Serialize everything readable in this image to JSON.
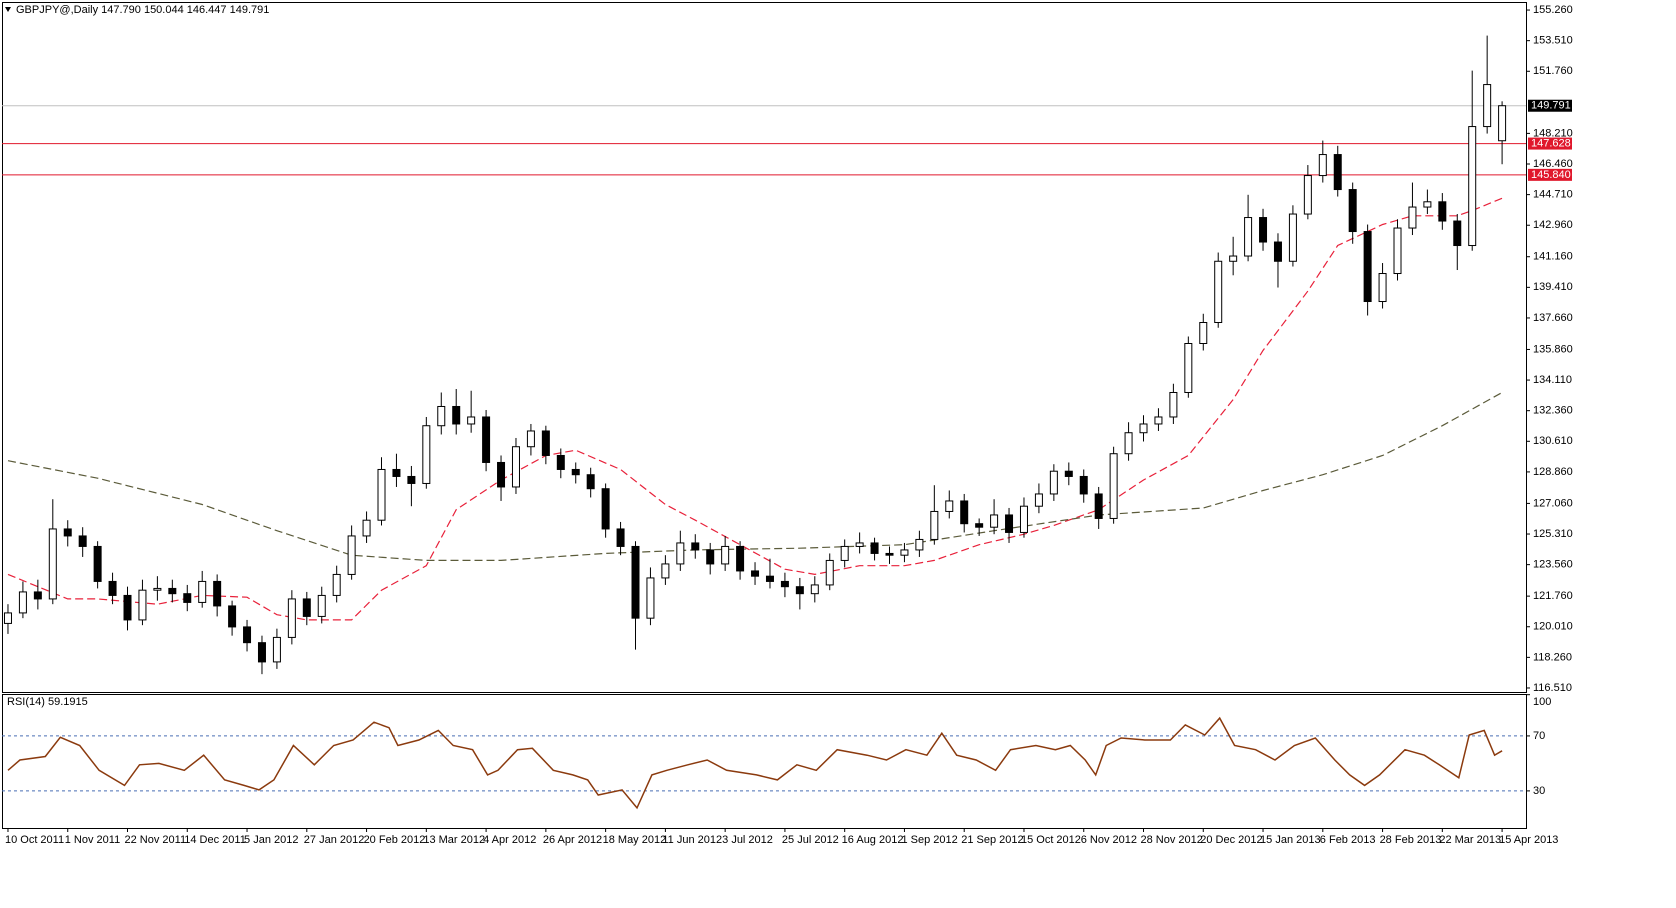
{
  "chart_data": {
    "type": "candlestick",
    "title": "GBPJPY@,Daily  147.790 150.044 146.447 149.791",
    "up_color": "#ffffff",
    "down_color": "#000000",
    "open": [
      120.2,
      120.8,
      122.0,
      121.6,
      125.6,
      125.2,
      124.6,
      122.6,
      121.8,
      120.4,
      122.1,
      122.2,
      121.9,
      121.4,
      122.6,
      121.2,
      120.0,
      119.1,
      118.0,
      119.4,
      121.6,
      120.6,
      121.8,
      123.0,
      125.2,
      126.1,
      129.0,
      128.6,
      128.2,
      131.5,
      132.6,
      131.6,
      132.0,
      129.4,
      128.0,
      130.3,
      131.2,
      129.8,
      129.0,
      128.7,
      127.9,
      125.6,
      124.6,
      120.5,
      122.8,
      123.6,
      124.8,
      124.4,
      123.6,
      124.6,
      123.2,
      122.9,
      122.6,
      122.3,
      121.9,
      122.4,
      123.8,
      124.6,
      124.8,
      124.2,
      124.1,
      124.4,
      125.0,
      126.6,
      127.2,
      125.9,
      125.7,
      126.4,
      125.4,
      126.9,
      127.6,
      128.9,
      128.6,
      127.6,
      126.2,
      129.9,
      131.1,
      131.6,
      132.0,
      133.4,
      136.2,
      137.4,
      140.9,
      141.2,
      143.4,
      142.0,
      140.9,
      143.6,
      145.8,
      147.0,
      145.0,
      142.6,
      138.6,
      140.2,
      142.8,
      144.0,
      144.3,
      143.2,
      141.8,
      148.6,
      147.79
    ],
    "high": [
      121.3,
      122.6,
      122.7,
      127.3,
      126.1,
      125.7,
      124.9,
      123.1,
      122.3,
      122.7,
      122.9,
      122.7,
      122.4,
      123.2,
      123.0,
      121.5,
      120.4,
      119.5,
      119.9,
      122.1,
      122.0,
      122.3,
      123.5,
      125.8,
      126.6,
      129.7,
      129.9,
      129.2,
      132.0,
      133.4,
      133.6,
      133.5,
      132.4,
      129.8,
      130.8,
      131.6,
      131.5,
      130.2,
      129.4,
      129.1,
      128.2,
      126.0,
      124.9,
      123.4,
      124.1,
      125.5,
      125.3,
      124.8,
      125.2,
      124.9,
      123.7,
      123.9,
      123.1,
      122.8,
      122.9,
      124.2,
      125.0,
      125.4,
      125.1,
      124.6,
      124.8,
      125.5,
      128.1,
      127.8,
      127.6,
      126.2,
      127.3,
      126.8,
      127.4,
      128.2,
      129.3,
      129.4,
      129.0,
      128.0,
      130.3,
      131.7,
      132.1,
      132.5,
      133.9,
      136.6,
      137.9,
      141.4,
      142.3,
      144.7,
      143.9,
      142.5,
      144.1,
      146.4,
      147.8,
      147.5,
      145.4,
      143.0,
      140.8,
      143.3,
      145.4,
      145.0,
      144.8,
      143.6,
      151.8,
      153.8,
      150.044
    ],
    "low": [
      119.6,
      120.5,
      121.0,
      121.3,
      124.6,
      124.0,
      122.2,
      121.3,
      119.8,
      120.1,
      121.5,
      121.4,
      120.9,
      121.1,
      120.6,
      119.5,
      118.6,
      117.3,
      117.6,
      119.0,
      120.1,
      120.2,
      121.4,
      122.7,
      124.8,
      125.8,
      128.0,
      126.9,
      127.9,
      131.0,
      131.0,
      131.1,
      128.9,
      127.2,
      127.6,
      129.8,
      129.3,
      128.5,
      128.2,
      127.4,
      125.1,
      124.1,
      118.7,
      120.1,
      122.4,
      123.2,
      123.9,
      123.0,
      123.2,
      122.7,
      122.4,
      122.2,
      121.7,
      121.0,
      121.4,
      122.1,
      123.4,
      124.2,
      123.8,
      123.6,
      123.7,
      124.0,
      124.7,
      126.2,
      125.4,
      125.2,
      125.3,
      124.8,
      125.1,
      126.5,
      127.2,
      128.1,
      127.1,
      125.6,
      125.9,
      129.5,
      130.6,
      131.2,
      131.6,
      133.1,
      135.8,
      137.1,
      140.1,
      140.9,
      141.5,
      139.4,
      140.6,
      143.3,
      145.4,
      144.6,
      141.9,
      137.8,
      138.2,
      139.8,
      142.4,
      143.6,
      142.7,
      140.4,
      141.5,
      148.2,
      146.447
    ],
    "close": [
      120.8,
      122.0,
      121.6,
      125.6,
      125.2,
      124.6,
      122.6,
      121.8,
      120.4,
      122.1,
      122.2,
      121.9,
      121.4,
      122.6,
      121.2,
      120.0,
      119.1,
      118.0,
      119.4,
      121.6,
      120.6,
      121.8,
      123.0,
      125.2,
      126.1,
      129.0,
      128.6,
      128.2,
      131.5,
      132.6,
      131.6,
      132.0,
      129.4,
      128.0,
      130.3,
      131.2,
      129.8,
      129.0,
      128.7,
      127.9,
      125.6,
      124.6,
      120.5,
      122.8,
      123.6,
      124.8,
      124.4,
      123.6,
      124.6,
      123.2,
      122.9,
      122.6,
      122.3,
      121.9,
      122.4,
      123.8,
      124.6,
      124.8,
      124.2,
      124.1,
      124.4,
      125.0,
      126.6,
      127.2,
      125.9,
      125.7,
      126.4,
      125.4,
      126.9,
      127.6,
      128.9,
      128.6,
      127.6,
      126.2,
      129.9,
      131.1,
      131.6,
      132.0,
      133.4,
      136.2,
      137.4,
      140.9,
      141.2,
      143.4,
      142.0,
      140.9,
      143.6,
      145.8,
      147.0,
      145.0,
      142.6,
      138.6,
      140.2,
      142.8,
      144.0,
      144.3,
      143.2,
      141.8,
      148.6,
      151.0,
      149.791
    ],
    "xlim": [
      -0.4,
      101.6
    ],
    "ylim": [
      116.28,
      155.72
    ],
    "yticks": [
      {
        "value": 155.26,
        "label": "155.260"
      },
      {
        "value": 153.51,
        "label": "153.510"
      },
      {
        "value": 151.76,
        "label": "151.760"
      },
      {
        "value": 148.21,
        "label": "148.210"
      },
      {
        "value": 146.46,
        "label": "146.460"
      },
      {
        "value": 144.71,
        "label": "144.710"
      },
      {
        "value": 142.96,
        "label": "142.960"
      },
      {
        "value": 141.16,
        "label": "141.160"
      },
      {
        "value": 139.41,
        "label": "139.410"
      },
      {
        "value": 137.66,
        "label": "137.660"
      },
      {
        "value": 135.86,
        "label": "135.860"
      },
      {
        "value": 134.11,
        "label": "134.110"
      },
      {
        "value": 132.36,
        "label": "132.360"
      },
      {
        "value": 130.61,
        "label": "130.610"
      },
      {
        "value": 128.86,
        "label": "128.860"
      },
      {
        "value": 127.06,
        "label": "127.060"
      },
      {
        "value": 125.31,
        "label": "125.310"
      },
      {
        "value": 123.56,
        "label": "123.560"
      },
      {
        "value": 121.76,
        "label": "121.760"
      },
      {
        "value": 120.01,
        "label": "120.010"
      },
      {
        "value": 118.26,
        "label": "118.260"
      },
      {
        "value": 116.51,
        "label": "116.510"
      }
    ],
    "xticks": [
      {
        "value": 0,
        "label": "10 Oct 2011"
      },
      {
        "value": 4,
        "label": "1 Nov 2011"
      },
      {
        "value": 8,
        "label": "22 Nov 2011"
      },
      {
        "value": 12,
        "label": "14 Dec 2011"
      },
      {
        "value": 16,
        "label": "5 Jan 2012"
      },
      {
        "value": 20,
        "label": "27 Jan 2012"
      },
      {
        "value": 24,
        "label": "20 Feb 2012"
      },
      {
        "value": 28,
        "label": "13 Mar 2012"
      },
      {
        "value": 32,
        "label": "4 Apr 2012"
      },
      {
        "value": 36,
        "label": "26 Apr 2012"
      },
      {
        "value": 40,
        "label": "18 May 2012"
      },
      {
        "value": 44,
        "label": "11 Jun 2012"
      },
      {
        "value": 48,
        "label": "3 Jul 2012"
      },
      {
        "value": 52,
        "label": "25 Jul 2012"
      },
      {
        "value": 56,
        "label": "16 Aug 2012"
      },
      {
        "value": 60,
        "label": "1 Sep 2012"
      },
      {
        "value": 64,
        "label": "21 Sep 2012"
      },
      {
        "value": 68,
        "label": "15 Oct 2012"
      },
      {
        "value": 72,
        "label": "6 Nov 2012"
      },
      {
        "value": 76,
        "label": "28 Nov 2012"
      },
      {
        "value": 80,
        "label": "20 Dec 2012"
      },
      {
        "value": 84,
        "label": "15 Jan 2013"
      },
      {
        "value": 88,
        "label": "6 Feb 2013"
      },
      {
        "value": 92,
        "label": "28 Feb 2013"
      },
      {
        "value": 96,
        "label": "22 Mar 2013"
      },
      {
        "value": 100,
        "label": "15 Apr 2013"
      }
    ],
    "moving_averages": [
      {
        "color": "#e8213a",
        "x": [
          0,
          4,
          6,
          10,
          13,
          16,
          18,
          20,
          23,
          25,
          28,
          30,
          33,
          36,
          38,
          41,
          44,
          46,
          49,
          52,
          54,
          57,
          60,
          62,
          65,
          68,
          70,
          73,
          76,
          79,
          82,
          84,
          87,
          89,
          92,
          94,
          97,
          98,
          100
        ],
        "values": [
          123.0,
          121.6,
          121.6,
          121.3,
          121.8,
          121.7,
          120.7,
          120.4,
          120.4,
          122.1,
          123.5,
          126.7,
          128.4,
          129.8,
          130.1,
          129.0,
          127.0,
          126.1,
          124.7,
          123.3,
          123.0,
          123.5,
          123.5,
          123.8,
          124.7,
          125.3,
          125.8,
          126.7,
          128.4,
          129.8,
          133.0,
          135.8,
          139.2,
          141.8,
          143.0,
          143.5,
          143.5,
          143.8,
          144.5
        ]
      },
      {
        "color": "#5b5b3a",
        "x": [
          0,
          6,
          13,
          18,
          23,
          28,
          33,
          40,
          46,
          53,
          60,
          66,
          73,
          80,
          84,
          88,
          92,
          96,
          100
        ],
        "values": [
          129.5,
          128.5,
          127.0,
          125.5,
          124.1,
          123.8,
          123.8,
          124.2,
          124.4,
          124.5,
          124.7,
          125.5,
          126.4,
          126.8,
          127.8,
          128.7,
          129.8,
          131.5,
          133.4
        ]
      }
    ],
    "hlines": [
      {
        "value": 149.791,
        "label": "149.791",
        "color": "#c0c0c0",
        "box": "#000000"
      },
      {
        "value": 147.628,
        "label": "147.628",
        "color": "#e0182c",
        "box": "#e0182c"
      },
      {
        "value": 145.84,
        "label": "145.840",
        "color": "#e0182c",
        "box": "#e0182c"
      }
    ],
    "indicator": {
      "title": "RSI(14) 59.1915",
      "color": "#8b3a0e",
      "ylim": [
        3,
        100.5
      ],
      "yticks": [
        100,
        70,
        30
      ],
      "levels": [
        70,
        30
      ],
      "x": [
        0,
        0.8,
        2.5,
        3.5,
        4.8,
        6.1,
        7.8,
        8.8,
        10.1,
        11.8,
        13.1,
        14.5,
        15.8,
        16.8,
        17.8,
        19.1,
        20.5,
        21.8,
        23.1,
        24.5,
        25.5,
        26.1,
        27.5,
        28.8,
        29.8,
        31.1,
        32.1,
        32.8,
        34.1,
        35.1,
        36.5,
        37.8,
        38.8,
        39.5,
        41.1,
        42.1,
        43.1,
        44.1,
        45.5,
        46.8,
        48.1,
        50.1,
        51.5,
        52.8,
        54.1,
        55.5,
        57.5,
        58.8,
        60.1,
        61.5,
        62.5,
        63.5,
        64.8,
        66.1,
        67.1,
        68.8,
        70.1,
        71.1,
        72.1,
        72.8,
        73.5,
        74.5,
        76.1,
        77.8,
        78.8,
        80.1,
        81.1,
        82.1,
        83.5,
        84.8,
        86.1,
        87.5,
        88.8,
        89.8,
        90.8,
        91.8,
        93.5,
        94.8,
        95.8,
        97.1,
        97.8,
        98.8,
        99.5,
        100
      ],
      "values": [
        45,
        52.5,
        55,
        69,
        63,
        45,
        34,
        49,
        50,
        45,
        56,
        38,
        34,
        30.7,
        38,
        63,
        49,
        63,
        67,
        80,
        76,
        63,
        67,
        74,
        63,
        60,
        41.6,
        45,
        60,
        61,
        45,
        41.6,
        38,
        27,
        30.7,
        17.6,
        41.6,
        45,
        49,
        52.5,
        45,
        41.6,
        38,
        49,
        45,
        60,
        56,
        52.5,
        60,
        56,
        72,
        56,
        52.5,
        45,
        60,
        63,
        60,
        63,
        52.5,
        41.6,
        63,
        68.5,
        67,
        67,
        78,
        70.7,
        83,
        63,
        60,
        52.5,
        63,
        68.5,
        52.5,
        41.6,
        34,
        41.6,
        60,
        56,
        49,
        39.5,
        70.7,
        74,
        56,
        59.2
      ]
    }
  }
}
